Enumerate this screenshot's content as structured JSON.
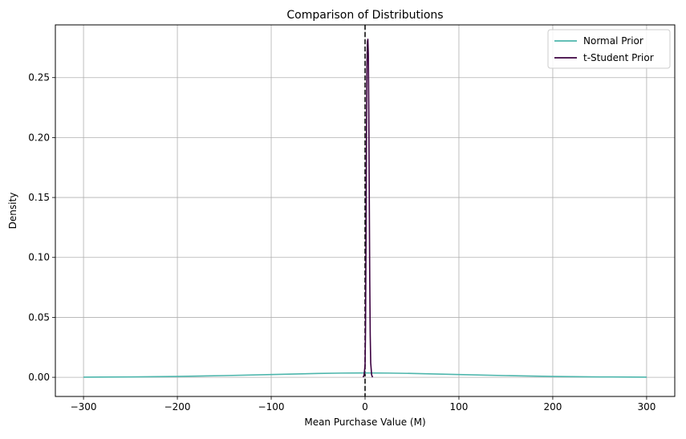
{
  "chart_data": {
    "type": "line",
    "title": "Comparison of Distributions",
    "xlabel": "Mean Purchase Value (M)",
    "ylabel": "Density",
    "xlim": [
      -330,
      330
    ],
    "ylim": [
      -0.016,
      0.294
    ],
    "xticks": [
      -300,
      -200,
      -100,
      0,
      100,
      200,
      300
    ],
    "xtick_labels": [
      "−300",
      "−200",
      "−100",
      "0",
      "100",
      "200",
      "300"
    ],
    "yticks": [
      0.0,
      0.05,
      0.1,
      0.15,
      0.2,
      0.25
    ],
    "ytick_labels": [
      "0.00",
      "0.05",
      "0.10",
      "0.15",
      "0.20",
      "0.25"
    ],
    "grid": true,
    "legend_position": "top-right",
    "vline": {
      "x": 0,
      "style": "dashed",
      "color": "#000000"
    },
    "series": [
      {
        "name": "Normal Prior",
        "color": "#4db6ac",
        "x": [
          -300,
          -250,
          -200,
          -150,
          -100,
          -50,
          -25,
          0,
          25,
          50,
          100,
          150,
          200,
          250,
          300
        ],
        "y": [
          0.0001,
          0.0003,
          0.0007,
          0.0014,
          0.0023,
          0.0032,
          0.0035,
          0.0036,
          0.0035,
          0.0032,
          0.0023,
          0.0014,
          0.0007,
          0.0003,
          0.0001
        ]
      },
      {
        "name": "t-Student Prior",
        "color": "#3b0040",
        "x": [
          -2,
          -1,
          0,
          0.5,
          1,
          1.5,
          2,
          2.5,
          3,
          3.5,
          4,
          4.5,
          5,
          5.5,
          6,
          7,
          8
        ],
        "y": [
          0.0,
          0.002,
          0.01,
          0.04,
          0.11,
          0.2,
          0.26,
          0.28,
          0.282,
          0.27,
          0.22,
          0.15,
          0.08,
          0.035,
          0.012,
          0.002,
          0.0
        ]
      }
    ]
  }
}
